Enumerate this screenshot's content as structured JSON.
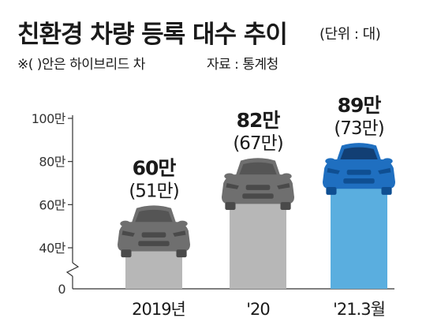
{
  "header": {
    "title": "친환경 차량 등록 대수 추이",
    "unit": "(단위 : 대)",
    "note": "※(  )안은 하이브리드 차",
    "source": "자료 : 통계청"
  },
  "colors": {
    "bar_gray": "#b7b7b7",
    "car_gray": "#6f6f6f",
    "bar_blue": "#5aaedf",
    "car_blue": "#1f6fc0",
    "text": "#1a1a1a"
  },
  "chart_data": {
    "type": "bar",
    "categories": [
      "2019년",
      "'20",
      "'21.3월"
    ],
    "series": [
      {
        "name": "친환경 차량",
        "values": [
          60,
          82,
          89
        ],
        "labels": [
          "60만",
          "82만",
          "89만"
        ]
      },
      {
        "name": "하이브리드 차",
        "values": [
          51,
          67,
          73
        ],
        "labels": [
          "(51만)",
          "(67만)",
          "(73만)"
        ]
      }
    ],
    "yticks": [
      0,
      40,
      60,
      80,
      100
    ],
    "ytick_labels": [
      "0",
      "40만",
      "60만",
      "80만",
      "100만"
    ],
    "ylim": [
      0,
      100
    ],
    "axis_break": true,
    "highlight_index": 2
  }
}
